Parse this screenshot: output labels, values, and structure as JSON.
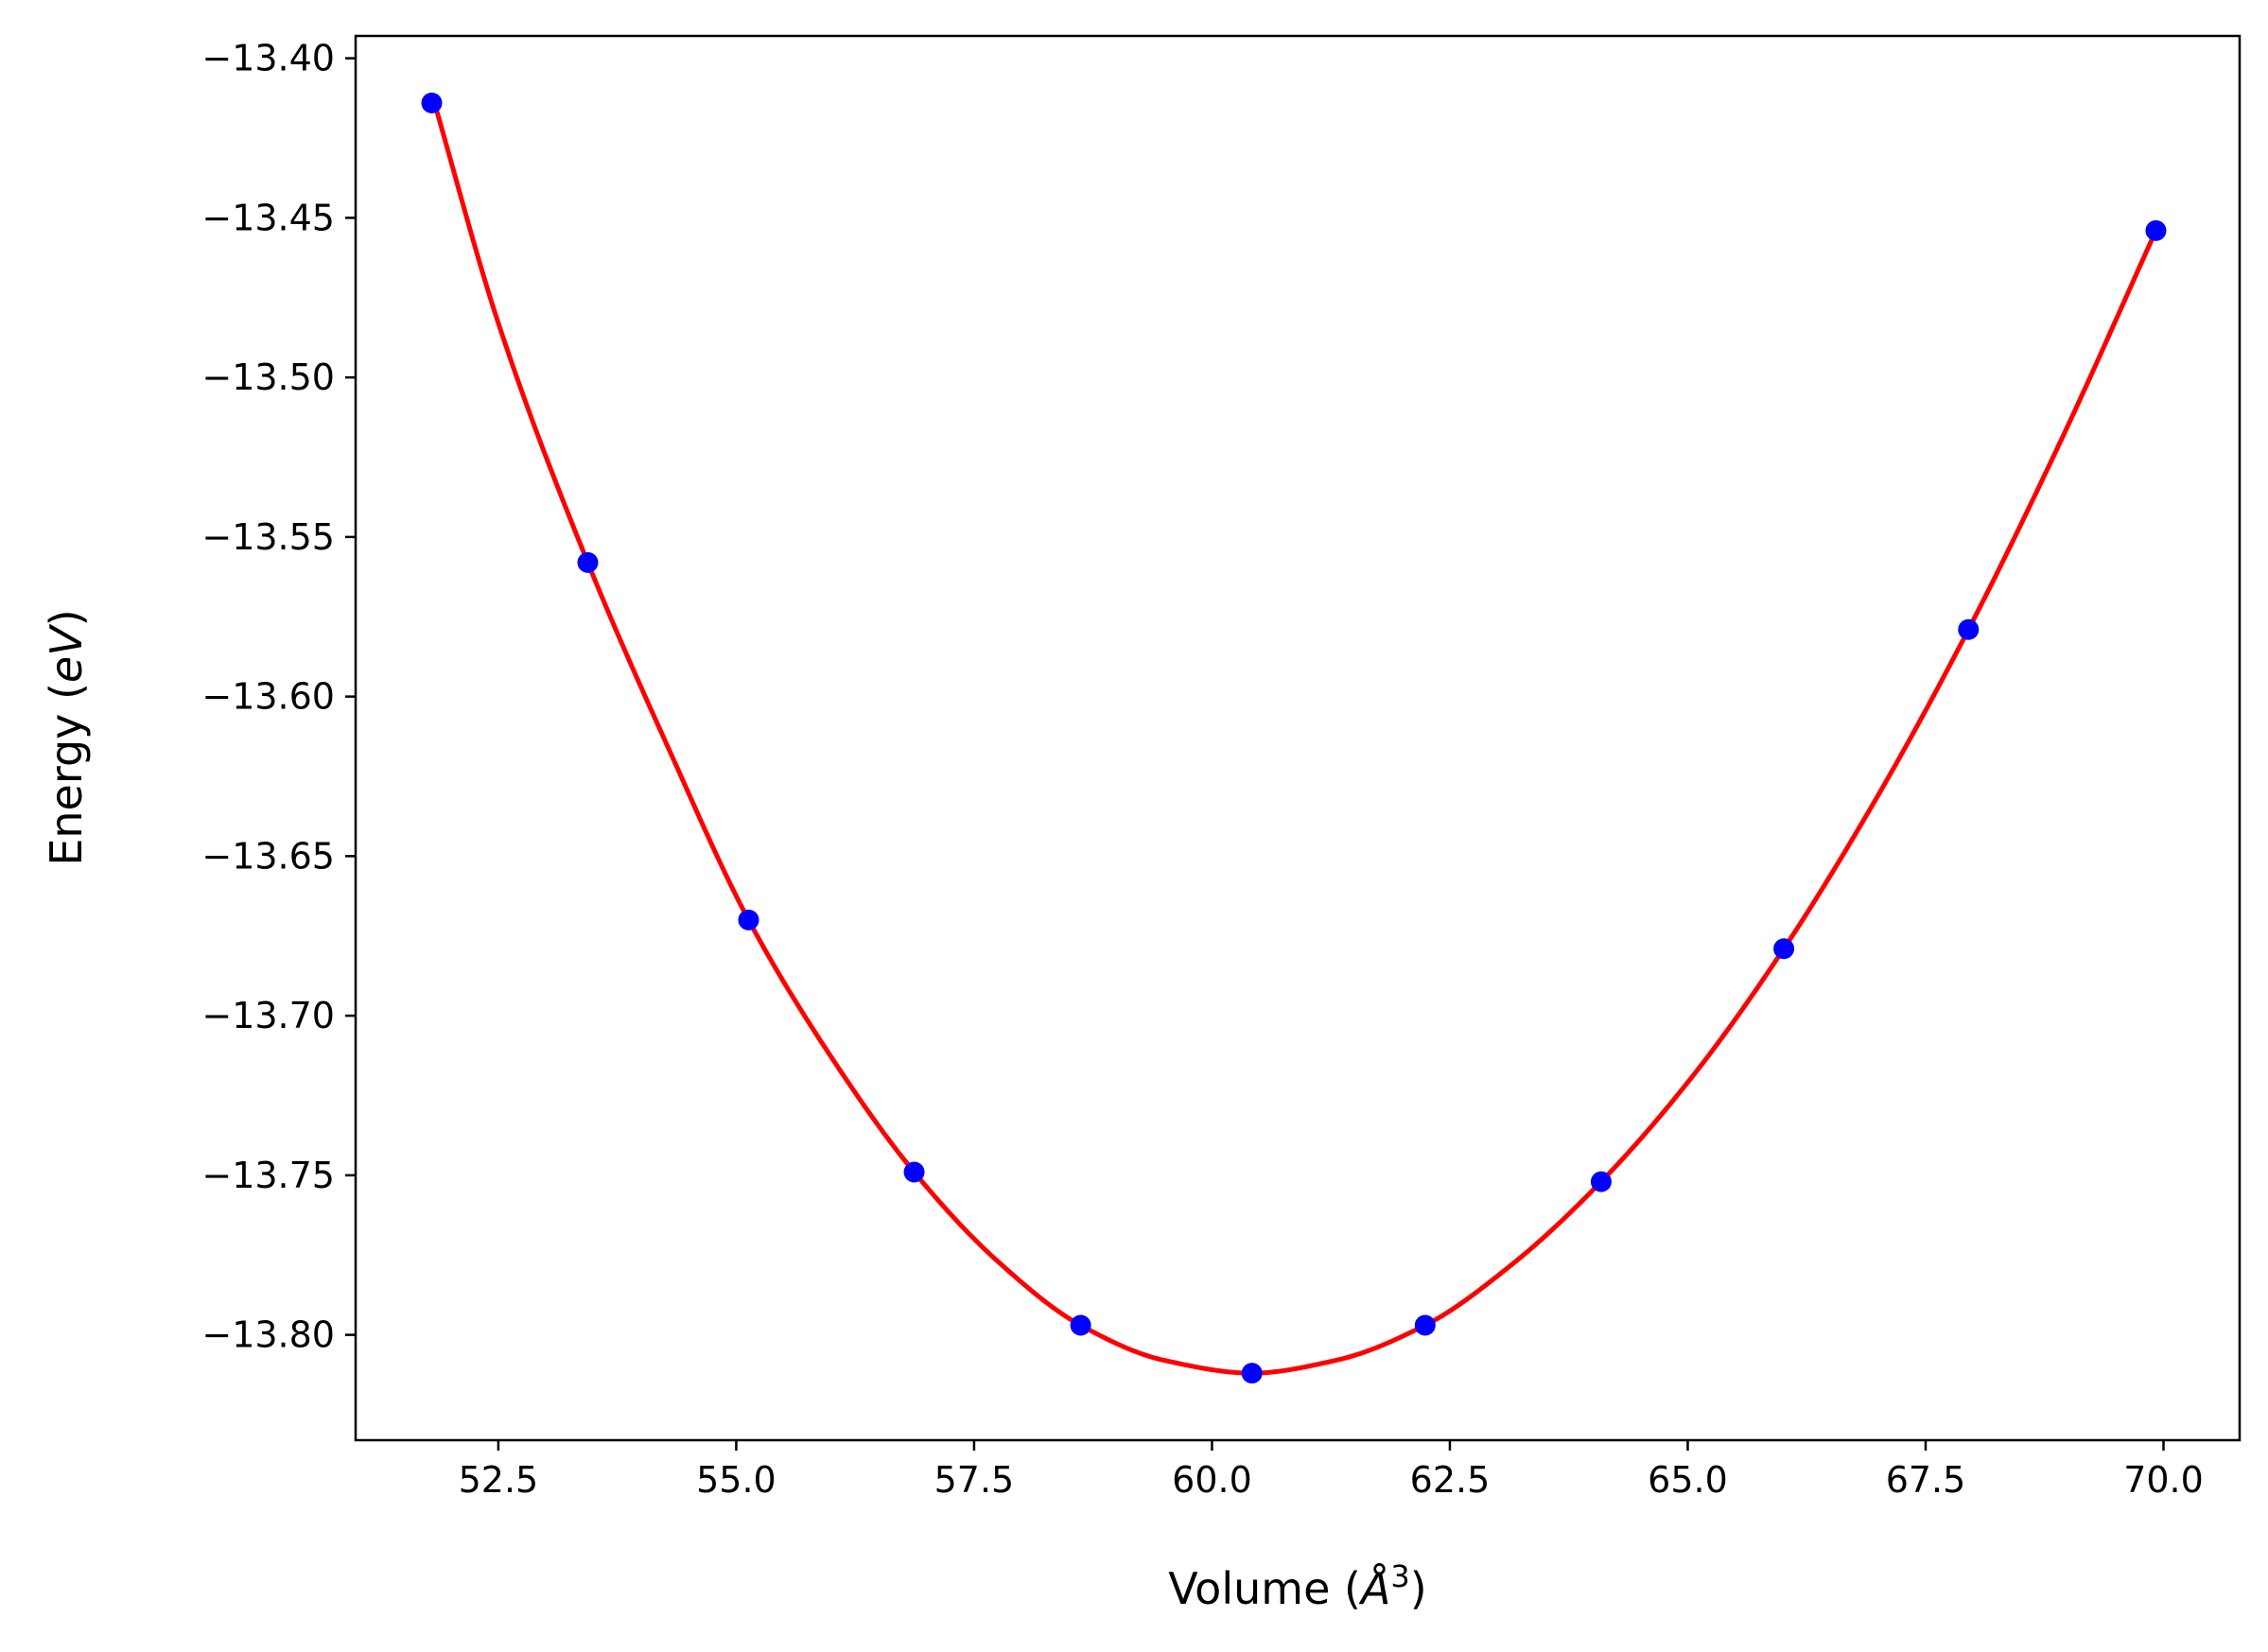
{
  "chart_data": {
    "type": "scatter",
    "title": "",
    "xlabel": "Volume (",
    "xlabel_symbol": "Å",
    "xlabel_power": "3",
    "xlabel_close": ")",
    "ylabel": "Energy (",
    "ylabel_symbol": "eV",
    "ylabel_close": ")",
    "xlim": [
      51.0,
      70.8
    ],
    "ylim": [
      -13.833,
      -13.393
    ],
    "x_ticks": [
      52.5,
      55.0,
      57.5,
      60.0,
      62.5,
      65.0,
      67.5,
      70.0
    ],
    "x_tick_labels": [
      "52.5",
      "55.0",
      "57.5",
      "60.0",
      "62.5",
      "65.0",
      "67.5",
      "70.0"
    ],
    "y_ticks": [
      -13.4,
      -13.45,
      -13.5,
      -13.55,
      -13.6,
      -13.65,
      -13.7,
      -13.75,
      -13.8
    ],
    "y_tick_labels": [
      "−13.40",
      "−13.45",
      "−13.50",
      "−13.55",
      "−13.60",
      "−13.65",
      "−13.70",
      "−13.75",
      "−13.80"
    ],
    "grid": false,
    "legend": "none",
    "series": [
      {
        "kind": "points",
        "color": "#0000ff",
        "x": [
          51.8,
          53.44,
          55.13,
          56.87,
          58.62,
          60.42,
          62.24,
          64.09,
          66.01,
          67.95,
          69.92
        ],
        "y": [
          -13.414,
          -13.558,
          -13.67,
          -13.749,
          -13.797,
          -13.812,
          -13.797,
          -13.752,
          -13.679,
          -13.579,
          -13.454
        ]
      },
      {
        "kind": "fit-curve",
        "color": "#ff0000",
        "x": [
          51.8,
          52.5,
          53.44,
          54.3,
          55.13,
          56.0,
          56.87,
          57.75,
          58.62,
          59.5,
          60.42,
          61.3,
          62.24,
          63.15,
          64.09,
          65.05,
          66.01,
          66.98,
          67.95,
          68.95,
          69.92
        ],
        "y": [
          -13.411,
          -13.483,
          -13.558,
          -13.617,
          -13.67,
          -13.713,
          -13.749,
          -13.777,
          -13.797,
          -13.808,
          -13.812,
          -13.808,
          -13.797,
          -13.778,
          -13.752,
          -13.719,
          -13.679,
          -13.632,
          -13.579,
          -13.518,
          -13.454
        ]
      }
    ]
  }
}
